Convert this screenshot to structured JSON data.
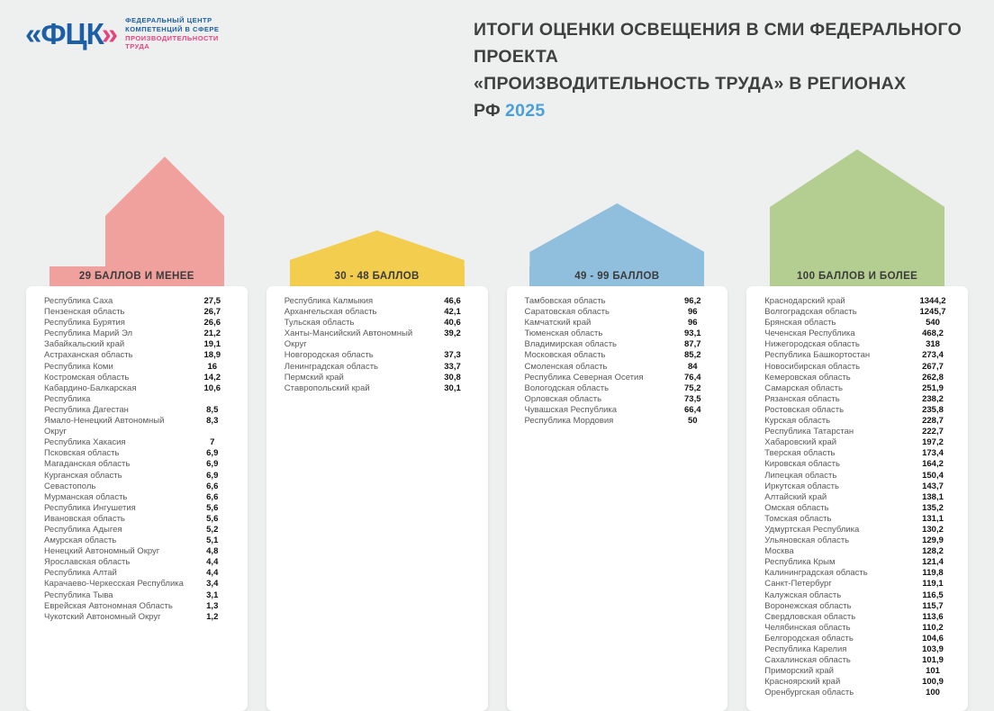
{
  "colors": {
    "background": "#edf0ee",
    "logo_blue": "#1d5fa6",
    "logo_pink": "#e8437f",
    "title_text": "#3f4040",
    "year_accent": "#4ba0d8",
    "band_text": "#3b3b3b"
  },
  "header": {
    "logo": {
      "mark": "«ФЦК",
      "mark_chevron": "»",
      "line1": "ФЕДЕРАЛЬНЫЙ ЦЕНТР",
      "line2": "КОМПЕТЕНЦИЙ В СФЕРЕ",
      "line3": "ПРОИЗВОДИТЕЛЬНОСТИ",
      "line4": "ТРУДА"
    },
    "title_line1": "ИТОГИ ОЦЕНКИ ОСВЕЩЕНИЯ В СМИ ФЕДЕРАЛЬНОГО ПРОЕКТА",
    "title_line2": "«ПРОИЗВОДИТЕЛЬНОСТЬ ТРУДА» В РЕГИОНАХ РФ",
    "title_year": "2025"
  },
  "chart_data": {
    "type": "table",
    "title": "ИТОГИ ОЦЕНКИ ОСВЕЩЕНИЯ В СМИ ФЕДЕРАЛЬНОГО ПРОЕКТА «ПРОИЗВОДИТЕЛЬНОСТЬ ТРУДА» В РЕГИОНАХ РФ 2025",
    "legend_position": "column headers (score range bands)",
    "groups": [
      {
        "label": "29 БАЛЛОВ И МЕНЕЕ",
        "color": "#f0a19e",
        "rows": [
          {
            "region": "Республика Саха",
            "value": "27,5"
          },
          {
            "region": "Пензенская область",
            "value": "26,7"
          },
          {
            "region": "Республика Бурятия",
            "value": "26,6"
          },
          {
            "region": "Республика Марий Эл",
            "value": "21,2"
          },
          {
            "region": "Забайкальский край",
            "value": "19,1"
          },
          {
            "region": "Астраханская область",
            "value": "18,9"
          },
          {
            "region": "Республика Коми",
            "value": "16"
          },
          {
            "region": "Костромская область",
            "value": "14,2"
          },
          {
            "region": "Кабардино-Балкарская Республика",
            "value": "10,6"
          },
          {
            "region": "Республика Дагестан",
            "value": "8,5"
          },
          {
            "region": "Ямало-Ненецкий Автономный Округ",
            "value": "8,3"
          },
          {
            "region": "Республика Хакасия",
            "value": "7"
          },
          {
            "region": "Псковская область",
            "value": "6,9"
          },
          {
            "region": "Магаданская область",
            "value": "6,9"
          },
          {
            "region": "Курганская область",
            "value": "6,9"
          },
          {
            "region": "Севастополь",
            "value": "6,6"
          },
          {
            "region": "Мурманская область",
            "value": "6,6"
          },
          {
            "region": "Республика Ингушетия",
            "value": "5,6"
          },
          {
            "region": "Ивановская область",
            "value": "5,6"
          },
          {
            "region": "Республика Адыгея",
            "value": "5,2"
          },
          {
            "region": "Амурская область",
            "value": "5,1"
          },
          {
            "region": "Ненецкий Автономный Округ",
            "value": "4,8"
          },
          {
            "region": "Ярославская область",
            "value": "4,4"
          },
          {
            "region": "Республика Алтай",
            "value": "4,4"
          },
          {
            "region": "Карачаево-Черкесская Республика",
            "value": "3,4"
          },
          {
            "region": "Республика Тыва",
            "value": "3,1"
          },
          {
            "region": "Еврейская Автономная Область",
            "value": "1,3"
          },
          {
            "region": "Чукотский Автономный Округ",
            "value": "1,2"
          }
        ]
      },
      {
        "label": "30 - 48 БАЛЛОВ",
        "color": "#f2cd4e",
        "rows": [
          {
            "region": "Республика Калмыкия",
            "value": "46,6"
          },
          {
            "region": "Архангельская область",
            "value": "42,1"
          },
          {
            "region": "Тульская область",
            "value": "40,6"
          },
          {
            "region": "Ханты-Мансийский Автономный Округ",
            "value": "39,2"
          },
          {
            "region": "Новгородская область",
            "value": "37,3"
          },
          {
            "region": "Ленинградская область",
            "value": "33,7"
          },
          {
            "region": "Пермский край",
            "value": "30,8"
          },
          {
            "region": "Ставропольский край",
            "value": "30,1"
          }
        ]
      },
      {
        "label": "49 - 99 БАЛЛОВ",
        "color": "#90bedd",
        "rows": [
          {
            "region": "Тамбовская область",
            "value": "96,2"
          },
          {
            "region": "Саратовская область",
            "value": "96"
          },
          {
            "region": "Камчатский край",
            "value": "96"
          },
          {
            "region": "Тюменская область",
            "value": "93,1"
          },
          {
            "region": "Владимирская область",
            "value": "87,7"
          },
          {
            "region": "Московская область",
            "value": "85,2"
          },
          {
            "region": "Смоленская область",
            "value": "84"
          },
          {
            "region": "Республика Северная Осетия",
            "value": "76,4"
          },
          {
            "region": "Вологодская область",
            "value": "75,2"
          },
          {
            "region": "Орловская область",
            "value": "73,5"
          },
          {
            "region": "Чувашская Республика",
            "value": "66,4"
          },
          {
            "region": "Республика Мордовия",
            "value": "50"
          }
        ]
      },
      {
        "label": "100 БАЛЛОВ И БОЛЕЕ",
        "color": "#b4cd90",
        "rows": [
          {
            "region": "Краснодарский край",
            "value": "1344,2"
          },
          {
            "region": "Волгоградская область",
            "value": "1245,7"
          },
          {
            "region": "Брянская область",
            "value": "540"
          },
          {
            "region": "Чеченская Республика",
            "value": "468,2"
          },
          {
            "region": "Нижегородская область",
            "value": "318"
          },
          {
            "region": "Республика Башкортостан",
            "value": "273,4"
          },
          {
            "region": "Новосибирская область",
            "value": "267,7"
          },
          {
            "region": "Кемеровская область",
            "value": "262,8"
          },
          {
            "region": "Самарская область",
            "value": "251,9"
          },
          {
            "region": "Рязанская область",
            "value": "238,2"
          },
          {
            "region": "Ростовская область",
            "value": "235,8"
          },
          {
            "region": "Курская область",
            "value": "228,7"
          },
          {
            "region": "Республика Татарстан",
            "value": "222,7"
          },
          {
            "region": "Хабаровский край",
            "value": "197,2"
          },
          {
            "region": "Тверская область",
            "value": "173,4"
          },
          {
            "region": "Кировская область",
            "value": "164,2"
          },
          {
            "region": "Липецкая область",
            "value": "150,4"
          },
          {
            "region": "Иркутская область",
            "value": "143,7"
          },
          {
            "region": "Алтайский край",
            "value": "138,1"
          },
          {
            "region": "Омская область",
            "value": "135,2"
          },
          {
            "region": "Томская область",
            "value": "131,1"
          },
          {
            "region": "Удмуртская Республика",
            "value": "130,2"
          },
          {
            "region": "Ульяновская область",
            "value": "129,9"
          },
          {
            "region": "Москва",
            "value": "128,2"
          },
          {
            "region": "Республика Крым",
            "value": "121,4"
          },
          {
            "region": "Калининградская область",
            "value": "119,8"
          },
          {
            "region": "Санкт-Петербург",
            "value": "119,1"
          },
          {
            "region": "Калужская область",
            "value": "116,5"
          },
          {
            "region": "Воронежская область",
            "value": "115,7"
          },
          {
            "region": "Свердловская область",
            "value": "113,6"
          },
          {
            "region": "Челябинская область",
            "value": "110,2"
          },
          {
            "region": "Белгородская область",
            "value": "104,6"
          },
          {
            "region": "Республика Карелия",
            "value": "103,9"
          },
          {
            "region": "Сахалинская область",
            "value": "101,9"
          },
          {
            "region": "Приморский край",
            "value": "101"
          },
          {
            "region": "Красноярский край",
            "value": "100,9"
          },
          {
            "region": "Оренбургская область",
            "value": "100"
          }
        ]
      }
    ]
  }
}
